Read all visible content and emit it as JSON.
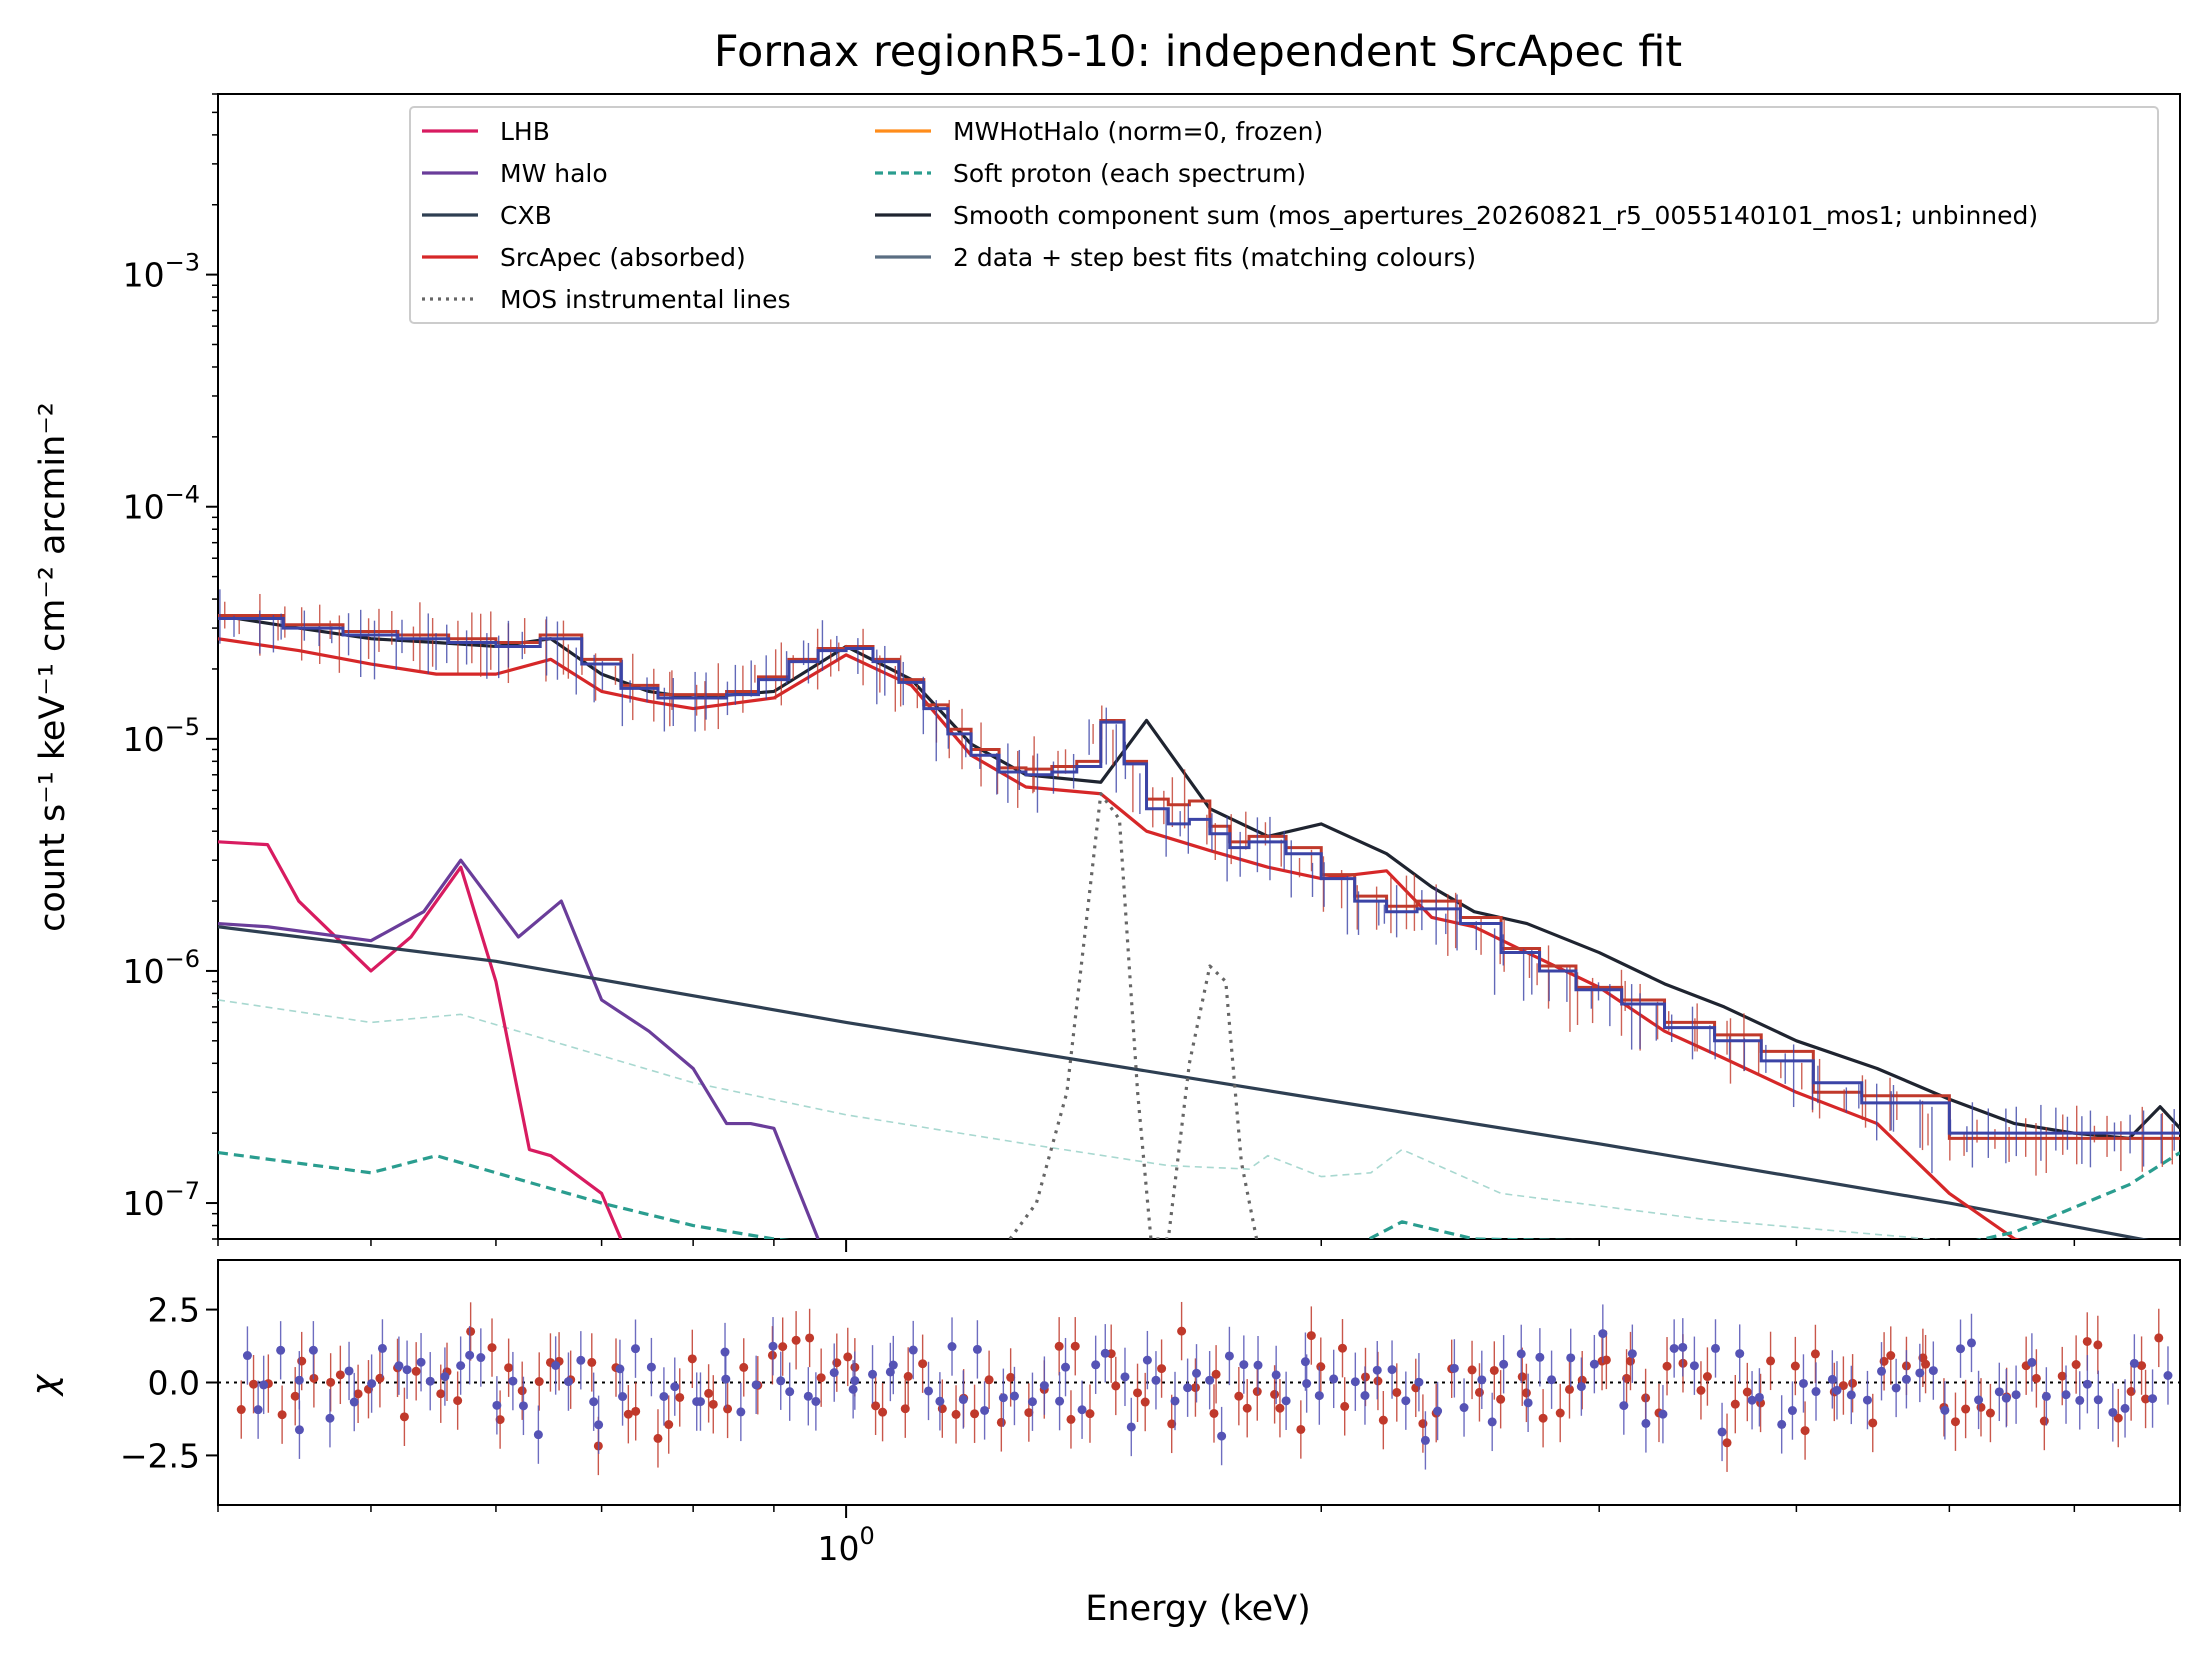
{
  "chart_data": [
    {
      "type": "line",
      "title": "Fornax regionR5-10: independent SrcApec fit",
      "xlabel": "Energy (keV)",
      "ylabel": "count s⁻¹ keV⁻¹ cm⁻² arcmin⁻²",
      "xscale": "log",
      "yscale": "log",
      "xlim": [
        0.4,
        7.0
      ],
      "ylim": [
        7e-08,
        0.006
      ],
      "x_tick_labels": [
        {
          "value": 1.0,
          "label": "10^0"
        }
      ],
      "y_tick_labels": [
        {
          "value": 1e-07,
          "label": "10^-7"
        },
        {
          "value": 1e-06,
          "label": "10^-6"
        },
        {
          "value": 1e-05,
          "label": "10^-5"
        },
        {
          "value": 0.0001,
          "label": "10^-4"
        },
        {
          "value": 0.001,
          "label": "10^-3"
        }
      ],
      "legend_placement": "top",
      "grid": false,
      "series": [
        {
          "name": "LHB",
          "color": "#d81b60",
          "style": "solid",
          "x": [
            0.4,
            0.43,
            0.45,
            0.5,
            0.53,
            0.57,
            0.6,
            0.63,
            0.65,
            0.7,
            0.72
          ],
          "y": [
            3.6e-06,
            3.5e-06,
            2e-06,
            1e-06,
            1.4e-06,
            2.8e-06,
            9e-07,
            1.7e-07,
            1.6e-07,
            1.1e-07,
            7e-08
          ]
        },
        {
          "name": "MW halo",
          "color": "#6a3d9a",
          "style": "solid",
          "x": [
            0.4,
            0.43,
            0.5,
            0.54,
            0.57,
            0.62,
            0.66,
            0.7,
            0.75,
            0.8,
            0.84,
            0.87,
            0.9,
            0.93,
            0.96
          ],
          "y": [
            1.6e-06,
            1.55e-06,
            1.35e-06,
            1.8e-06,
            3e-06,
            1.4e-06,
            2e-06,
            7.5e-07,
            5.5e-07,
            3.8e-07,
            2.2e-07,
            2.2e-07,
            2.1e-07,
            1.2e-07,
            7e-08
          ]
        },
        {
          "name": "CXB",
          "color": "#2e3f52",
          "style": "solid",
          "x": [
            0.4,
            0.6,
            1.0,
            2.0,
            3.0,
            5.0,
            7.0
          ],
          "y": [
            1.55e-06,
            1.1e-06,
            6e-07,
            2.8e-07,
            1.8e-07,
            1e-07,
            6.5e-08
          ]
        },
        {
          "name": "SrcApec (absorbed)",
          "color": "#d62728",
          "style": "solid",
          "x": [
            0.4,
            0.45,
            0.5,
            0.55,
            0.6,
            0.65,
            0.7,
            0.75,
            0.8,
            0.9,
            1.0,
            1.1,
            1.2,
            1.3,
            1.45,
            1.55,
            1.7,
            1.85,
            2.0,
            2.2,
            2.35,
            2.5,
            2.7,
            3.0,
            3.3,
            3.6,
            4.0,
            4.5,
            5.0,
            5.5,
            6.0
          ],
          "y": [
            2.7e-05,
            2.4e-05,
            2.1e-05,
            1.9e-05,
            1.9e-05,
            2.2e-05,
            1.6e-05,
            1.45e-05,
            1.35e-05,
            1.5e-05,
            2.3e-05,
            1.7e-05,
            8.5e-06,
            6.2e-06,
            5.8e-06,
            4e-06,
            3.3e-06,
            2.8e-06,
            2.5e-06,
            2.7e-06,
            1.7e-06,
            1.55e-06,
            1.2e-06,
            8.5e-07,
            5.5e-07,
            4.2e-07,
            3e-07,
            2.2e-07,
            1.1e-07,
            7e-08,
            6e-08
          ]
        },
        {
          "name": "MWHotHalo (norm=0, frozen)",
          "color": "#ff8c1a",
          "style": "solid",
          "x": [],
          "y": []
        },
        {
          "name": "Soft proton (each spectrum)",
          "color": "#2a9d8f",
          "style": "dashed",
          "x": [
            0.4,
            0.5,
            0.55,
            0.6,
            0.7,
            0.8,
            0.9,
            1.0,
            2.1,
            2.25,
            2.5,
            5.0,
            5.5,
            6.5,
            7.0
          ],
          "y": [
            1.65e-07,
            1.35e-07,
            1.6e-07,
            1.35e-07,
            1e-07,
            8e-08,
            7e-08,
            6.5e-08,
            6.5e-08,
            8.3e-08,
            7e-08,
            6.5e-08,
            7.5e-08,
            1.2e-07,
            1.65e-07
          ]
        },
        {
          "name": "Smooth component sum (mos_apertures_20260821_r5_0055140101_mos1; unbinned)",
          "color": "#1f2430",
          "style": "solid",
          "x": [
            0.4,
            0.45,
            0.5,
            0.55,
            0.6,
            0.65,
            0.7,
            0.75,
            0.8,
            0.9,
            1.0,
            1.1,
            1.2,
            1.3,
            1.45,
            1.55,
            1.7,
            1.85,
            2.0,
            2.2,
            2.35,
            2.5,
            2.7,
            3.0,
            3.3,
            3.6,
            4.0,
            4.5,
            5.0,
            5.5,
            6.0,
            6.5,
            6.8,
            7.0
          ],
          "y": [
            3.4e-05,
            3e-05,
            2.7e-05,
            2.6e-05,
            2.5e-05,
            2.7e-05,
            1.9e-05,
            1.6e-05,
            1.5e-05,
            1.6e-05,
            2.5e-05,
            1.8e-05,
            9.5e-06,
            7e-06,
            6.5e-06,
            1.2e-05,
            5e-06,
            3.8e-06,
            4.3e-06,
            3.2e-06,
            2.3e-06,
            1.8e-06,
            1.6e-06,
            1.2e-06,
            8.8e-07,
            7e-07,
            5e-07,
            3.8e-07,
            2.8e-07,
            2.2e-07,
            2e-07,
            1.9e-07,
            2.6e-07,
            2.1e-07
          ]
        },
        {
          "name": "2 data + step best fits (matching colours)",
          "color": "#5a6e82",
          "style": "solid",
          "x": [],
          "y": []
        },
        {
          "name": "MOS instrumental lines",
          "color": "#666666",
          "style": "dotted",
          "x": [
            1.27,
            1.32,
            1.38,
            1.45,
            1.49,
            1.53,
            1.56,
            1.6,
            1.65,
            1.7,
            1.74,
            1.78,
            1.82
          ],
          "y": [
            7e-08,
            1e-07,
            3e-07,
            5.8e-06,
            4.5e-06,
            3e-07,
            7e-08,
            7e-08,
            4e-07,
            1.05e-06,
            9e-07,
            1.5e-07,
            7e-08
          ]
        }
      ],
      "step_fits": [
        {
          "color": "#c0392b",
          "x": [
            0.4,
            0.44,
            0.48,
            0.52,
            0.56,
            0.6,
            0.64,
            0.68,
            0.72,
            0.76,
            0.8,
            0.84,
            0.88,
            0.92,
            0.96,
            1.0,
            1.04,
            1.08,
            1.12,
            1.16,
            1.2,
            1.25,
            1.3,
            1.35,
            1.4,
            1.45,
            1.5,
            1.55,
            1.6,
            1.65,
            1.7,
            1.75,
            1.8,
            1.9,
            2.0,
            2.1,
            2.2,
            2.3,
            2.45,
            2.6,
            2.75,
            2.9,
            3.1,
            3.3,
            3.55,
            3.8,
            4.1,
            4.4,
            5.0,
            7.0
          ],
          "y": [
            3.4e-05,
            3.1e-05,
            2.9e-05,
            2.8e-05,
            2.7e-05,
            2.6e-05,
            2.8e-05,
            2.2e-05,
            1.7e-05,
            1.55e-05,
            1.55e-05,
            1.6e-05,
            1.85e-05,
            2.2e-05,
            2.45e-05,
            2.5e-05,
            2.2e-05,
            1.8e-05,
            1.4e-05,
            1.1e-05,
            9e-06,
            7.5e-06,
            7.4e-06,
            7.6e-06,
            8e-06,
            1.2e-05,
            8e-06,
            5.5e-06,
            5.2e-06,
            5.4e-06,
            4.2e-06,
            3.6e-06,
            3.8e-06,
            3.4e-06,
            2.6e-06,
            2.1e-06,
            1.9e-06,
            2e-06,
            1.7e-06,
            1.25e-06,
            1.05e-06,
            8.5e-07,
            7.5e-07,
            6e-07,
            5.3e-07,
            4.5e-07,
            3e-07,
            2.9e-07,
            1.9e-07,
            1.9e-07
          ]
        },
        {
          "color": "#3b44a6",
          "x": [
            0.4,
            0.44,
            0.48,
            0.52,
            0.56,
            0.6,
            0.64,
            0.68,
            0.72,
            0.76,
            0.8,
            0.84,
            0.88,
            0.92,
            0.96,
            1.0,
            1.04,
            1.08,
            1.12,
            1.16,
            1.2,
            1.25,
            1.3,
            1.35,
            1.4,
            1.45,
            1.5,
            1.55,
            1.6,
            1.65,
            1.7,
            1.75,
            1.8,
            1.9,
            2.0,
            2.1,
            2.2,
            2.3,
            2.45,
            2.6,
            2.75,
            2.9,
            3.1,
            3.3,
            3.55,
            3.8,
            4.1,
            4.4,
            5.0,
            7.0
          ],
          "y": [
            3.3e-05,
            3e-05,
            2.8e-05,
            2.7e-05,
            2.6e-05,
            2.5e-05,
            2.7e-05,
            2.1e-05,
            1.65e-05,
            1.5e-05,
            1.5e-05,
            1.55e-05,
            1.8e-05,
            2.15e-05,
            2.4e-05,
            2.45e-05,
            2.15e-05,
            1.75e-05,
            1.35e-05,
            1.05e-05,
            8.5e-06,
            7.2e-06,
            7e-06,
            7.2e-06,
            7.6e-06,
            1.18e-05,
            7.8e-06,
            5e-06,
            4.3e-06,
            4.5e-06,
            3.9e-06,
            3.4e-06,
            3.6e-06,
            3.2e-06,
            2.5e-06,
            2e-06,
            1.8e-06,
            1.85e-06,
            1.6e-06,
            1.2e-06,
            1e-06,
            8.3e-07,
            7.2e-07,
            5.7e-07,
            5e-07,
            4.1e-07,
            3.3e-07,
            2.7e-07,
            2e-07,
            2e-07
          ]
        }
      ]
    },
    {
      "type": "scatter",
      "title": "",
      "xlabel": "Energy (keV)",
      "ylabel": "χ",
      "xscale": "log",
      "xlim": [
        0.4,
        7.0
      ],
      "ylim": [
        -4.2,
        4.2
      ],
      "x_tick_labels": [
        {
          "value": 1.0,
          "label": "10^0"
        }
      ],
      "y_tick_labels": [
        "2.5",
        "0.0",
        "−2.5"
      ],
      "y_ticks": [
        2.5,
        0.0,
        -2.5
      ],
      "reference_line": {
        "y": 0.0,
        "style": "dotted"
      },
      "series": [
        {
          "color": "#c0392b",
          "seed": 7,
          "n": 150,
          "errbar": 1.0
        },
        {
          "color": "#5553b5",
          "seed": 19,
          "n": 150,
          "errbar": 1.0
        }
      ]
    }
  ],
  "legend": {
    "entries": [
      {
        "label": "LHB",
        "color": "#d81b60",
        "style": "solid"
      },
      {
        "label": "MW halo",
        "color": "#6a3d9a",
        "style": "solid"
      },
      {
        "label": "CXB",
        "color": "#2e3f52",
        "style": "solid"
      },
      {
        "label": "SrcApec (absorbed)",
        "color": "#d62728",
        "style": "solid"
      },
      {
        "label": "MOS instrumental lines",
        "color": "#666666",
        "style": "dotted"
      },
      {
        "label": "MWHotHalo (norm=0, frozen)",
        "color": "#ff8c1a",
        "style": "solid"
      },
      {
        "label": "Soft proton (each spectrum)",
        "color": "#2a9d8f",
        "style": "dashed"
      },
      {
        "label": "Smooth component sum (mos_apertures_20260821_r5_0055140101_mos1; unbinned)",
        "color": "#1f2430",
        "style": "solid"
      },
      {
        "label": "2 data + step best fits (matching colours)",
        "color": "#5a6e82",
        "style": "solid"
      }
    ]
  }
}
